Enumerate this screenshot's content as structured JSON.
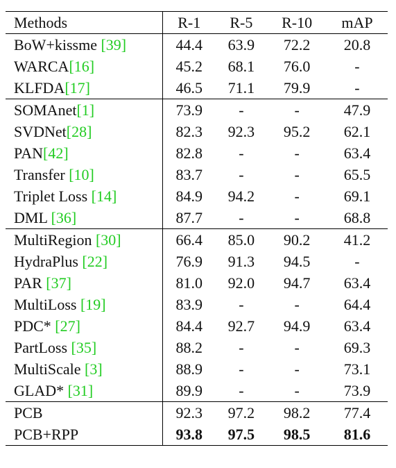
{
  "table": {
    "headers": [
      "Methods",
      "R-1",
      "R-5",
      "R-10",
      "mAP"
    ],
    "groups": [
      [
        {
          "method": "BoW+kissme ",
          "cite": "[39]",
          "values": [
            "44.4",
            "63.9",
            "72.2",
            "20.8"
          ]
        },
        {
          "method": "WARCA",
          "cite": "[16]",
          "values": [
            "45.2",
            "68.1",
            "76.0",
            "-"
          ]
        },
        {
          "method": "KLFDA",
          "cite": "[17]",
          "values": [
            "46.5",
            "71.1",
            "79.9",
            "-"
          ]
        }
      ],
      [
        {
          "method": "SOMAnet",
          "cite": "[1]",
          "values": [
            "73.9",
            "-",
            "-",
            "47.9"
          ]
        },
        {
          "method": "SVDNet",
          "cite": "[28]",
          "values": [
            "82.3",
            "92.3",
            "95.2",
            "62.1"
          ]
        },
        {
          "method": "PAN",
          "cite": "[42]",
          "values": [
            "82.8",
            "-",
            "-",
            "63.4"
          ]
        },
        {
          "method": "Transfer ",
          "cite": "[10]",
          "values": [
            "83.7",
            "-",
            "-",
            "65.5"
          ]
        },
        {
          "method": "Triplet Loss ",
          "cite": "[14]",
          "values": [
            "84.9",
            "94.2",
            "-",
            "69.1"
          ]
        },
        {
          "method": "DML ",
          "cite": "[36]",
          "values": [
            "87.7",
            "-",
            "-",
            "68.8"
          ]
        }
      ],
      [
        {
          "method": "MultiRegion ",
          "cite": "[30]",
          "values": [
            "66.4",
            "85.0",
            "90.2",
            "41.2"
          ]
        },
        {
          "method": "HydraPlus ",
          "cite": "[22]",
          "values": [
            "76.9",
            "91.3",
            "94.5",
            "-"
          ]
        },
        {
          "method": "PAR ",
          "cite": "[37]",
          "values": [
            "81.0",
            "92.0",
            "94.7",
            "63.4"
          ]
        },
        {
          "method": "MultiLoss ",
          "cite": "[19]",
          "values": [
            "83.9",
            "-",
            "-",
            "64.4"
          ]
        },
        {
          "method": "PDC* ",
          "cite": "[27]",
          "values": [
            "84.4",
            "92.7",
            "94.9",
            "63.4"
          ]
        },
        {
          "method": "PartLoss ",
          "cite": "[35]",
          "values": [
            "88.2",
            "-",
            "-",
            "69.3"
          ]
        },
        {
          "method": "MultiScale ",
          "cite": "[3]",
          "values": [
            "88.9",
            "-",
            "-",
            "73.1"
          ]
        },
        {
          "method": "GLAD* ",
          "cite": "[31]",
          "values": [
            "89.9",
            "-",
            "-",
            "73.9"
          ]
        }
      ],
      [
        {
          "method": "PCB",
          "cite": "",
          "values": [
            "92.3",
            "97.2",
            "98.2",
            "77.4"
          ],
          "bold": false
        },
        {
          "method": "PCB+RPP",
          "cite": "",
          "values": [
            "93.8",
            "97.5",
            "98.5",
            "81.6"
          ],
          "bold": true
        }
      ]
    ],
    "citation_color": "#22cc22"
  }
}
